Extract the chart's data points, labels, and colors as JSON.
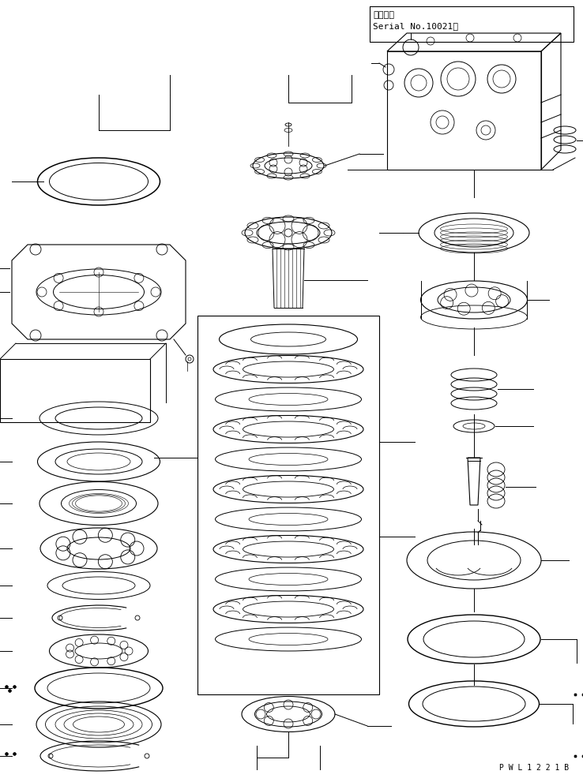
{
  "bg_color": "#ffffff",
  "line_color": "#000000",
  "lw": 0.7,
  "figsize": [
    7.38,
    9.91
  ],
  "dpi": 100,
  "title_line1": "適用号機",
  "title_line2": "Serial No.10021～",
  "watermark": "P W L 1 2 2 1 B",
  "xlim": [
    0,
    738
  ],
  "ylim": [
    0,
    991
  ]
}
